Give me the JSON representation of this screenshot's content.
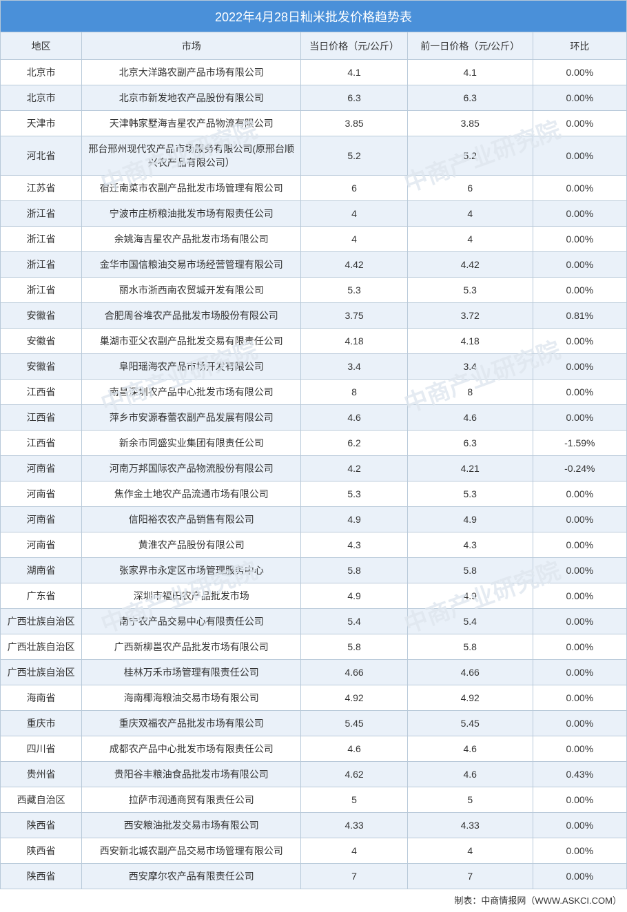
{
  "title": "2022年4月28日籼米批发价格趋势表",
  "watermark_text": "中商产业研究院",
  "footer": "制表：中商情报网（WWW.ASKCI.COM）",
  "columns": {
    "region": "地区",
    "market": "市场",
    "today": "当日价格（元/公斤）",
    "prev": "前一日价格（元/公斤）",
    "change": "环比"
  },
  "styling": {
    "title_bg": "#4a90d9",
    "title_color": "#ffffff",
    "header_bg": "#eaf1f9",
    "row_even_bg": "#eaf1f9",
    "row_odd_bg": "#ffffff",
    "border_color": "#b8c9d9",
    "text_color": "#333333",
    "watermark_color": "#dfe7ef",
    "title_fontsize": 18,
    "body_fontsize": 14,
    "col_widths_pct": [
      13,
      35,
      17,
      20,
      15
    ]
  },
  "rows": [
    {
      "region": "北京市",
      "market": "北京大洋路农副产品市场有限公司",
      "today": "4.1",
      "prev": "4.1",
      "change": "0.00%"
    },
    {
      "region": "北京市",
      "market": "北京市新发地农产品股份有限公司",
      "today": "6.3",
      "prev": "6.3",
      "change": "0.00%"
    },
    {
      "region": "天津市",
      "market": "天津韩家墅海吉星农产品物流有限公司",
      "today": "3.85",
      "prev": "3.85",
      "change": "0.00%"
    },
    {
      "region": "河北省",
      "market": "邢台邢州现代农产品市场服务有限公司(原邢台顺兴农产品有限公司）",
      "today": "5.2",
      "prev": "5.2",
      "change": "0.00%"
    },
    {
      "region": "江苏省",
      "market": "宿迁南菜市农副产品批发市场管理有限公司",
      "today": "6",
      "prev": "6",
      "change": "0.00%"
    },
    {
      "region": "浙江省",
      "market": "宁波市庄桥粮油批发市场有限责任公司",
      "today": "4",
      "prev": "4",
      "change": "0.00%"
    },
    {
      "region": "浙江省",
      "market": "余姚海吉星农产品批发市场有限公司",
      "today": "4",
      "prev": "4",
      "change": "0.00%"
    },
    {
      "region": "浙江省",
      "market": "金华市国信粮油交易市场经营管理有限公司",
      "today": "4.42",
      "prev": "4.42",
      "change": "0.00%"
    },
    {
      "region": "浙江省",
      "market": "丽水市浙西南农贸城开发有限公司",
      "today": "5.3",
      "prev": "5.3",
      "change": "0.00%"
    },
    {
      "region": "安徽省",
      "market": "合肥周谷堆农产品批发市场股份有限公司",
      "today": "3.75",
      "prev": "3.72",
      "change": "0.81%"
    },
    {
      "region": "安徽省",
      "market": "巢湖市亚父农副产品批发交易有限责任公司",
      "today": "4.18",
      "prev": "4.18",
      "change": "0.00%"
    },
    {
      "region": "安徽省",
      "market": "阜阳瑶海农产品市场开发有限公司",
      "today": "3.4",
      "prev": "3.4",
      "change": "0.00%"
    },
    {
      "region": "江西省",
      "market": "南昌深圳农产品中心批发市场有限公司",
      "today": "8",
      "prev": "8",
      "change": "0.00%"
    },
    {
      "region": "江西省",
      "market": "萍乡市安源春蕾农副产品发展有限公司",
      "today": "4.6",
      "prev": "4.6",
      "change": "0.00%"
    },
    {
      "region": "江西省",
      "market": "新余市同盛实业集团有限责任公司",
      "today": "6.2",
      "prev": "6.3",
      "change": "-1.59%"
    },
    {
      "region": "河南省",
      "market": "河南万邦国际农产品物流股份有限公司",
      "today": "4.2",
      "prev": "4.21",
      "change": "-0.24%"
    },
    {
      "region": "河南省",
      "market": "焦作金土地农产品流通市场有限公司",
      "today": "5.3",
      "prev": "5.3",
      "change": "0.00%"
    },
    {
      "region": "河南省",
      "market": "信阳裕农农产品销售有限公司",
      "today": "4.9",
      "prev": "4.9",
      "change": "0.00%"
    },
    {
      "region": "河南省",
      "market": "黄淮农产品股份有限公司",
      "today": "4.3",
      "prev": "4.3",
      "change": "0.00%"
    },
    {
      "region": "湖南省",
      "market": "张家界市永定区市场管理服务中心",
      "today": "5.8",
      "prev": "5.8",
      "change": "0.00%"
    },
    {
      "region": "广东省",
      "market": "深圳市福田农产品批发市场",
      "today": "4.9",
      "prev": "4.9",
      "change": "0.00%"
    },
    {
      "region": "广西壮族自治区",
      "market": "南宁农产品交易中心有限责任公司",
      "today": "5.4",
      "prev": "5.4",
      "change": "0.00%"
    },
    {
      "region": "广西壮族自治区",
      "market": "广西新柳邕农产品批发市场有限公司",
      "today": "5.8",
      "prev": "5.8",
      "change": "0.00%"
    },
    {
      "region": "广西壮族自治区",
      "market": "桂林万禾市场管理有限责任公司",
      "today": "4.66",
      "prev": "4.66",
      "change": "0.00%"
    },
    {
      "region": "海南省",
      "market": "海南椰海粮油交易市场有限公司",
      "today": "4.92",
      "prev": "4.92",
      "change": "0.00%"
    },
    {
      "region": "重庆市",
      "market": "重庆双福农产品批发市场有限公司",
      "today": "5.45",
      "prev": "5.45",
      "change": "0.00%"
    },
    {
      "region": "四川省",
      "market": "成都农产品中心批发市场有限责任公司",
      "today": "4.6",
      "prev": "4.6",
      "change": "0.00%"
    },
    {
      "region": "贵州省",
      "market": "贵阳谷丰粮油食品批发市场有限公司",
      "today": "4.62",
      "prev": "4.6",
      "change": "0.43%"
    },
    {
      "region": "西藏自治区",
      "market": "拉萨市润通商贸有限责任公司",
      "today": "5",
      "prev": "5",
      "change": "0.00%"
    },
    {
      "region": "陕西省",
      "market": "西安粮油批发交易市场有限公司",
      "today": "4.33",
      "prev": "4.33",
      "change": "0.00%"
    },
    {
      "region": "陕西省",
      "market": "西安新北城农副产品交易市场管理有限公司",
      "today": "4",
      "prev": "4",
      "change": "0.00%"
    },
    {
      "region": "陕西省",
      "market": "西安摩尔农产品有限责任公司",
      "today": "7",
      "prev": "7",
      "change": "0.00%"
    }
  ]
}
